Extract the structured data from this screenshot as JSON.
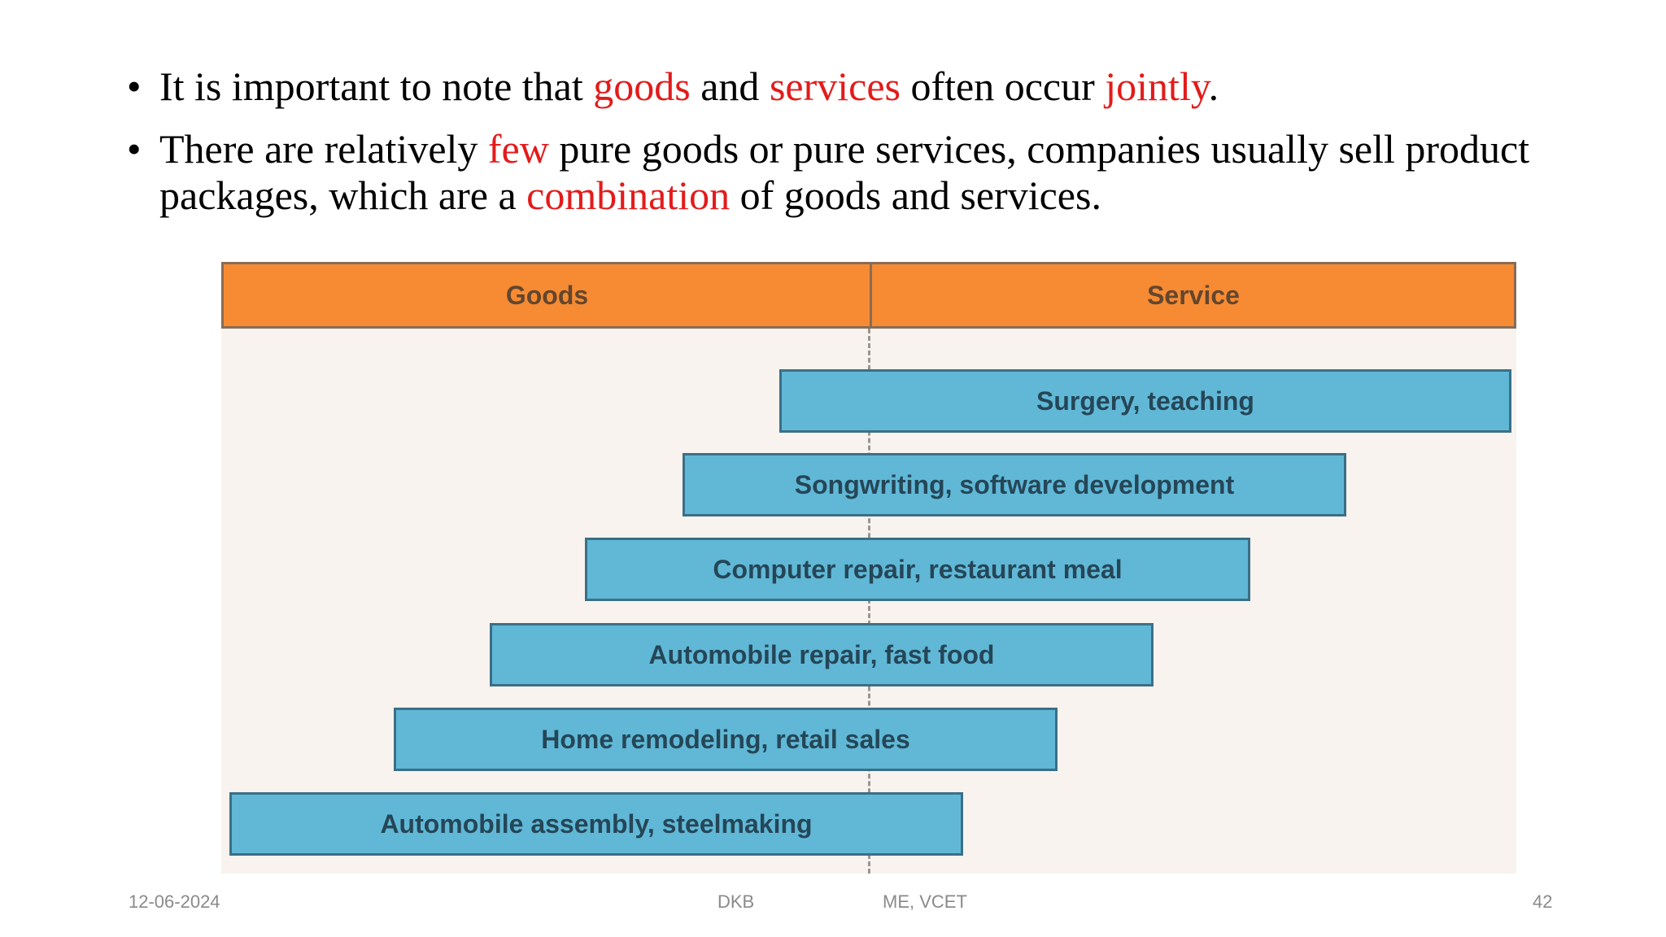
{
  "bullets": [
    {
      "parts": [
        {
          "text": "It is important to note that ",
          "hl": false
        },
        {
          "text": "goods",
          "hl": true
        },
        {
          "text": " and ",
          "hl": false
        },
        {
          "text": "services",
          "hl": true
        },
        {
          "text": " often occur ",
          "hl": false
        },
        {
          "text": "jointly",
          "hl": true
        },
        {
          "text": ".",
          "hl": false
        }
      ]
    },
    {
      "parts": [
        {
          "text": "There are relatively ",
          "hl": false
        },
        {
          "text": "few",
          "hl": true
        },
        {
          "text": " pure goods or pure services, companies usually sell product packages,  which are a ",
          "hl": false
        },
        {
          "text": "combination",
          "hl": true
        },
        {
          "text": " of goods and services.",
          "hl": false
        }
      ]
    }
  ],
  "bullet_symbol": "•",
  "diagram": {
    "header": {
      "goods": "Goods",
      "service": "Service"
    },
    "bars": [
      {
        "label": "Surgery, teaching"
      },
      {
        "label": "Songwriting, software development"
      },
      {
        "label": "Computer repair, restaurant meal"
      },
      {
        "label": "Automobile repair, fast food"
      },
      {
        "label": "Home remodeling, retail sales"
      },
      {
        "label": "Automobile assembly, steelmaking"
      }
    ]
  },
  "footer": {
    "date": "12-06-2024",
    "author": "DKB",
    "dept": "ME, VCET",
    "page": "42"
  },
  "colors": {
    "highlight": "#e31b1b",
    "header": "#f68b33",
    "bar": "#60b8d6",
    "panel": "#f8f3ee"
  }
}
